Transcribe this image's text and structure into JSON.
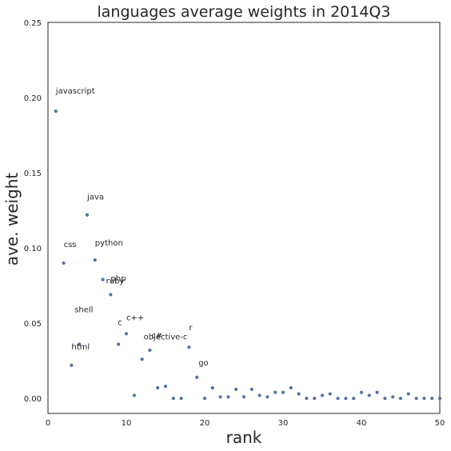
{
  "chart_data": {
    "type": "scatter",
    "title": "languages average weights in 2014Q3",
    "xlabel": "rank",
    "ylabel": "ave. weight",
    "xlim": [
      0,
      50
    ],
    "ylim": [
      -0.01,
      0.25
    ],
    "x_ticks": [
      0,
      10,
      20,
      30,
      40,
      50
    ],
    "x_tick_labels": [
      "0",
      "10",
      "20",
      "30",
      "40",
      "50"
    ],
    "y_ticks": [
      0.0,
      0.05,
      0.1,
      0.15,
      0.2,
      0.25
    ],
    "y_tick_labels": [
      "0.00",
      "0.05",
      "0.10",
      "0.15",
      "0.20",
      "0.25"
    ],
    "grid": false,
    "marker_color": "#4c72b0",
    "labeled_points": [
      {
        "label": "javascript",
        "x": 1,
        "y": 0.191
      },
      {
        "label": "css",
        "x": 2,
        "y": 0.09
      },
      {
        "label": "html",
        "x": 3,
        "y": 0.022
      },
      {
        "label": "shell",
        "x": 4,
        "y": 0.036
      },
      {
        "label": "java",
        "x": 5,
        "y": 0.122
      },
      {
        "label": "python",
        "x": 6,
        "y": 0.092
      },
      {
        "label": "ruby",
        "x": 7,
        "y": 0.079
      },
      {
        "label": "php",
        "x": 8,
        "y": 0.069
      },
      {
        "label": "c",
        "x": 9,
        "y": 0.036
      },
      {
        "label": "c++",
        "x": 10,
        "y": 0.043
      },
      {
        "label": "objective-c",
        "x": 12,
        "y": 0.026
      },
      {
        "label": "c#",
        "x": 13,
        "y": 0.032
      },
      {
        "label": "r",
        "x": 18,
        "y": 0.034
      },
      {
        "label": "go",
        "x": 19,
        "y": 0.014
      }
    ],
    "unlabeled_points": [
      {
        "x": 11,
        "y": 0.002
      },
      {
        "x": 14,
        "y": 0.007
      },
      {
        "x": 15,
        "y": 0.008
      },
      {
        "x": 16,
        "y": 0.0
      },
      {
        "x": 17,
        "y": 0.0
      },
      {
        "x": 20,
        "y": 0.0
      },
      {
        "x": 21,
        "y": 0.007
      },
      {
        "x": 22,
        "y": 0.001
      },
      {
        "x": 23,
        "y": 0.001
      },
      {
        "x": 24,
        "y": 0.006
      },
      {
        "x": 25,
        "y": 0.001
      },
      {
        "x": 26,
        "y": 0.006
      },
      {
        "x": 27,
        "y": 0.002
      },
      {
        "x": 28,
        "y": 0.001
      },
      {
        "x": 29,
        "y": 0.004
      },
      {
        "x": 30,
        "y": 0.004
      },
      {
        "x": 31,
        "y": 0.007
      },
      {
        "x": 32,
        "y": 0.003
      },
      {
        "x": 33,
        "y": 0.0
      },
      {
        "x": 34,
        "y": 0.0
      },
      {
        "x": 35,
        "y": 0.002
      },
      {
        "x": 36,
        "y": 0.003
      },
      {
        "x": 37,
        "y": 0.0
      },
      {
        "x": 38,
        "y": 0.0
      },
      {
        "x": 39,
        "y": 0.0
      },
      {
        "x": 40,
        "y": 0.004
      },
      {
        "x": 41,
        "y": 0.002
      },
      {
        "x": 42,
        "y": 0.004
      },
      {
        "x": 43,
        "y": 0.0
      },
      {
        "x": 44,
        "y": 0.001
      },
      {
        "x": 45,
        "y": 0.0
      },
      {
        "x": 46,
        "y": 0.003
      },
      {
        "x": 47,
        "y": 0.0
      },
      {
        "x": 48,
        "y": 0.0
      },
      {
        "x": 49,
        "y": 0.0
      },
      {
        "x": 50,
        "y": 0.0
      }
    ]
  }
}
